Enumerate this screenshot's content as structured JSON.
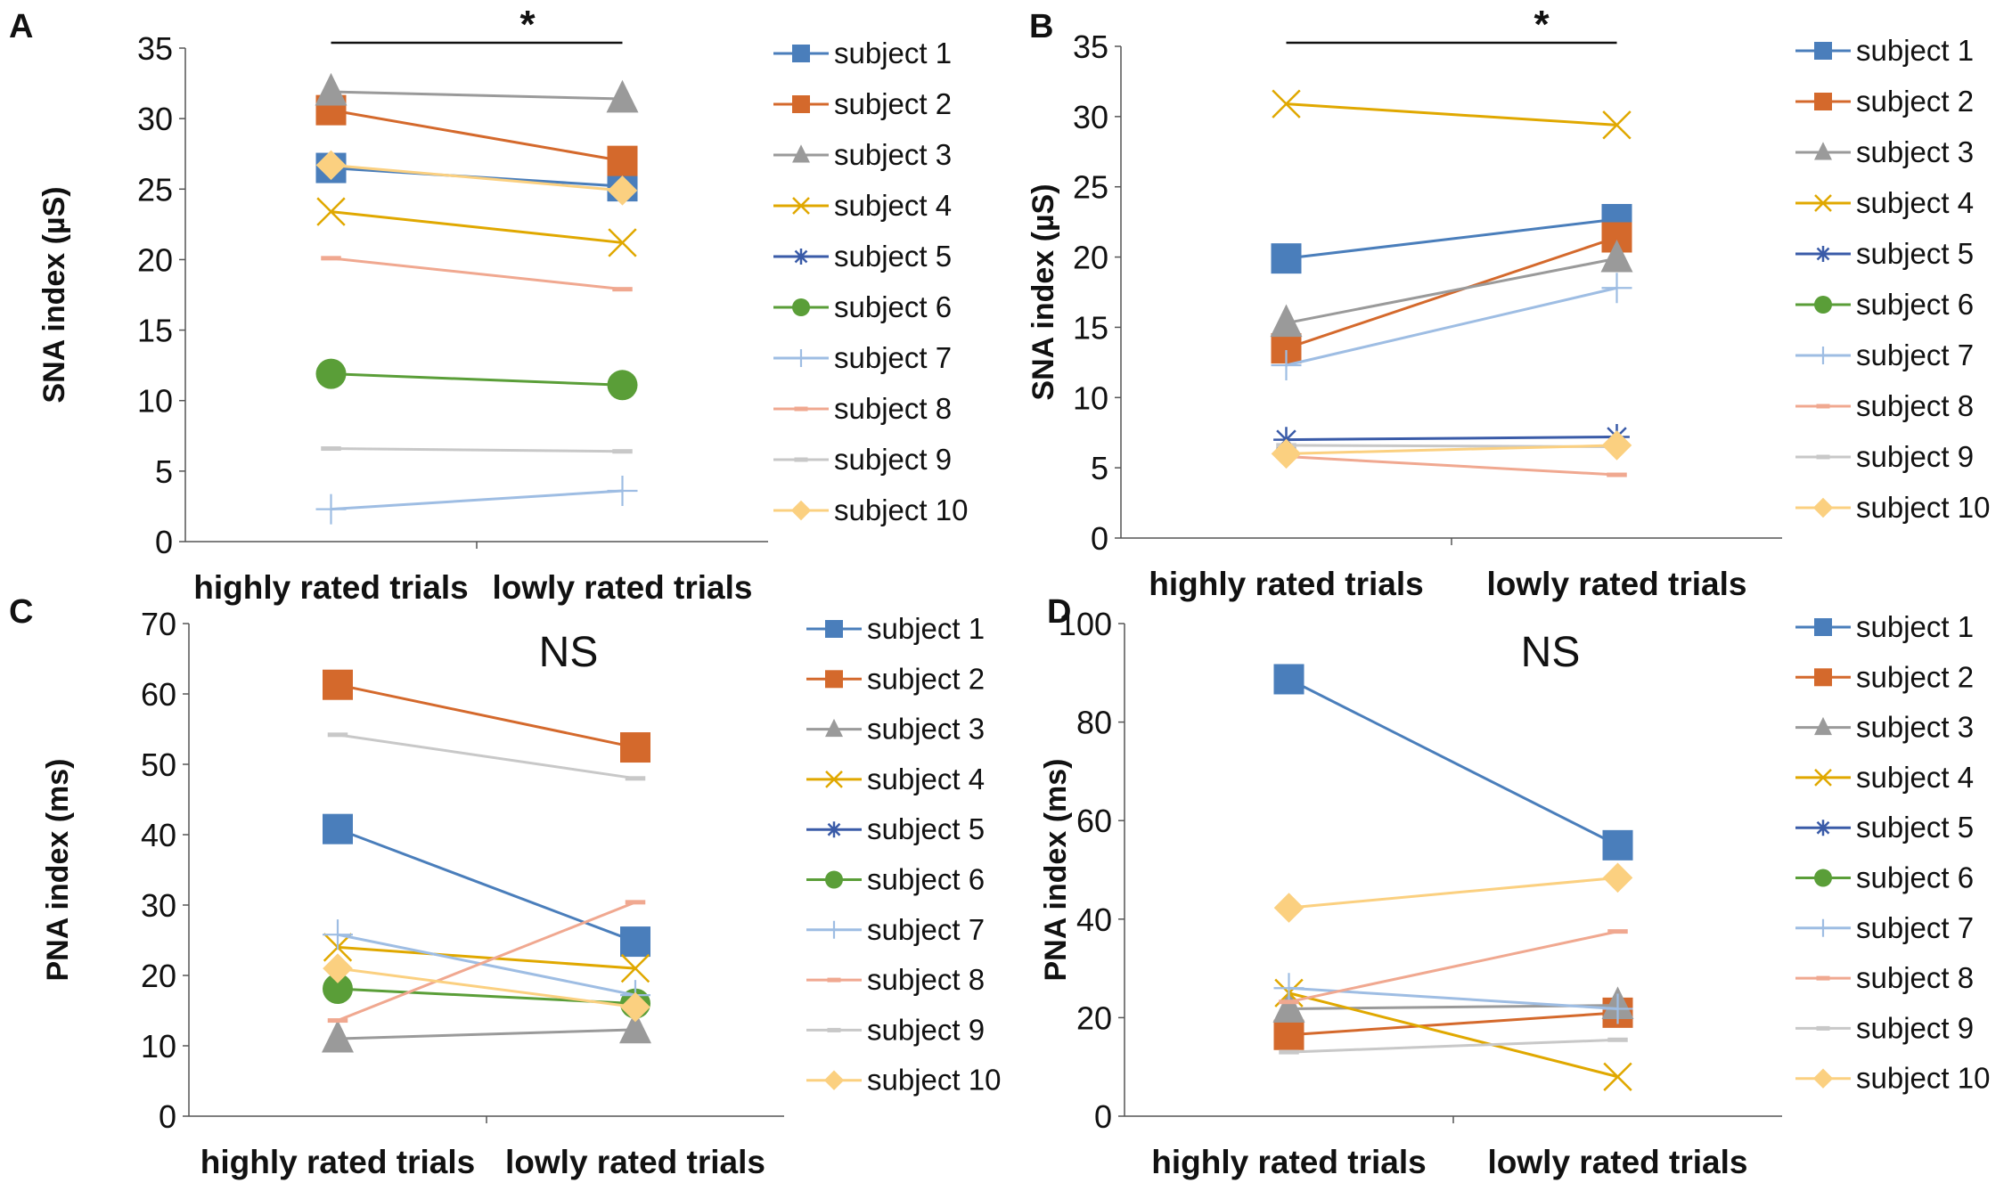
{
  "figure": {
    "subject_labels": [
      "subject 1",
      "subject 2",
      "subject 3",
      "subject 4",
      "subject 5",
      "subject 6",
      "subject 7",
      "subject 8",
      "subject 9",
      "subject 10"
    ],
    "series_colors": [
      "#4a7ebb",
      "#d4692c",
      "#9a9a9a",
      "#e0a800",
      "#3a5ba8",
      "#5a9e38",
      "#9ebde3",
      "#f0a890",
      "#c8c8c8",
      "#fbd080"
    ],
    "series_markers": [
      "square",
      "square",
      "triangle",
      "x",
      "star",
      "circle",
      "plus",
      "dash",
      "dash",
      "diamond"
    ]
  },
  "chart_data": [
    {
      "type": "line",
      "panel_label": "A",
      "ylabel": "SNA index (µS)",
      "categories": [
        "highly rated trials",
        "lowly rated trials"
      ],
      "ylim": [
        0,
        35
      ],
      "yticks": [
        "0",
        "5",
        "10",
        "15",
        "20",
        "25",
        "30",
        "35"
      ],
      "annotation": "*",
      "significance_bar": true,
      "series": [
        {
          "name": "subject 1",
          "values": [
            26.5,
            25.2
          ]
        },
        {
          "name": "subject 2",
          "values": [
            30.6,
            27.0
          ]
        },
        {
          "name": "subject 3",
          "values": [
            31.9,
            31.4
          ]
        },
        {
          "name": "subject 4",
          "values": [
            23.4,
            21.2
          ]
        },
        {
          "name": "subject 5",
          "values": [
            null,
            null
          ]
        },
        {
          "name": "subject 6",
          "values": [
            11.9,
            11.1
          ]
        },
        {
          "name": "subject 7",
          "values": [
            2.3,
            3.6
          ]
        },
        {
          "name": "subject 8",
          "values": [
            20.1,
            17.9
          ]
        },
        {
          "name": "subject 9",
          "values": [
            6.6,
            6.4
          ]
        },
        {
          "name": "subject 10",
          "values": [
            26.7,
            24.9
          ]
        }
      ]
    },
    {
      "type": "line",
      "panel_label": "B",
      "ylabel": "SNA index (µS)",
      "categories": [
        "highly rated trials",
        "lowly rated trials"
      ],
      "ylim": [
        0,
        35
      ],
      "yticks": [
        "0",
        "5",
        "10",
        "15",
        "20",
        "25",
        "30",
        "35"
      ],
      "annotation": "*",
      "significance_bar": true,
      "series": [
        {
          "name": "subject 1",
          "values": [
            19.9,
            22.7
          ]
        },
        {
          "name": "subject 2",
          "values": [
            13.5,
            21.4
          ]
        },
        {
          "name": "subject 3",
          "values": [
            15.3,
            19.9
          ]
        },
        {
          "name": "subject 4",
          "values": [
            30.9,
            29.4
          ]
        },
        {
          "name": "subject 5",
          "values": [
            7.0,
            7.2
          ]
        },
        {
          "name": "subject 6",
          "values": [
            null,
            null
          ]
        },
        {
          "name": "subject 7",
          "values": [
            12.3,
            17.8
          ]
        },
        {
          "name": "subject 8",
          "values": [
            5.8,
            4.5
          ]
        },
        {
          "name": "subject 9",
          "values": [
            6.6,
            6.5
          ]
        },
        {
          "name": "subject 10",
          "values": [
            6.0,
            6.6
          ]
        }
      ]
    },
    {
      "type": "line",
      "panel_label": "C",
      "ylabel": "PNA index (ms)",
      "categories": [
        "highly rated trials",
        "lowly rated trials"
      ],
      "ylim": [
        0,
        70
      ],
      "yticks": [
        "0",
        "10",
        "20",
        "30",
        "40",
        "50",
        "60",
        "70"
      ],
      "annotation": "NS",
      "significance_bar": false,
      "series": [
        {
          "name": "subject 1",
          "values": [
            40.8,
            24.8
          ]
        },
        {
          "name": "subject 2",
          "values": [
            61.3,
            52.4
          ]
        },
        {
          "name": "subject 3",
          "values": [
            11.0,
            12.3
          ]
        },
        {
          "name": "subject 4",
          "values": [
            24.0,
            21.0
          ]
        },
        {
          "name": "subject 5",
          "values": [
            null,
            null
          ]
        },
        {
          "name": "subject 6",
          "values": [
            18.1,
            16.0
          ]
        },
        {
          "name": "subject 7",
          "values": [
            25.8,
            17.2
          ]
        },
        {
          "name": "subject 8",
          "values": [
            13.6,
            30.4
          ]
        },
        {
          "name": "subject 9",
          "values": [
            54.2,
            48.0
          ]
        },
        {
          "name": "subject 10",
          "values": [
            21.0,
            15.5
          ]
        }
      ]
    },
    {
      "type": "line",
      "panel_label": "D",
      "ylabel": "PNA index (ms)",
      "categories": [
        "highly rated trials",
        "lowly rated trials"
      ],
      "ylim": [
        0,
        100
      ],
      "yticks": [
        "0",
        "20",
        "40",
        "60",
        "80",
        "100"
      ],
      "annotation": "NS",
      "significance_bar": false,
      "series": [
        {
          "name": "subject 1",
          "values": [
            88.7,
            55.0
          ]
        },
        {
          "name": "subject 2",
          "values": [
            16.5,
            21.0
          ]
        },
        {
          "name": "subject 3",
          "values": [
            21.8,
            22.5
          ]
        },
        {
          "name": "subject 4",
          "values": [
            25.0,
            8.0
          ]
        },
        {
          "name": "subject 5",
          "values": [
            null,
            null
          ]
        },
        {
          "name": "subject 6",
          "values": [
            null,
            null
          ]
        },
        {
          "name": "subject 7",
          "values": [
            26.0,
            21.8
          ]
        },
        {
          "name": "subject 8",
          "values": [
            23.2,
            37.5
          ]
        },
        {
          "name": "subject 9",
          "values": [
            13.0,
            15.5
          ]
        },
        {
          "name": "subject 10",
          "values": [
            42.3,
            48.4
          ]
        }
      ]
    }
  ]
}
